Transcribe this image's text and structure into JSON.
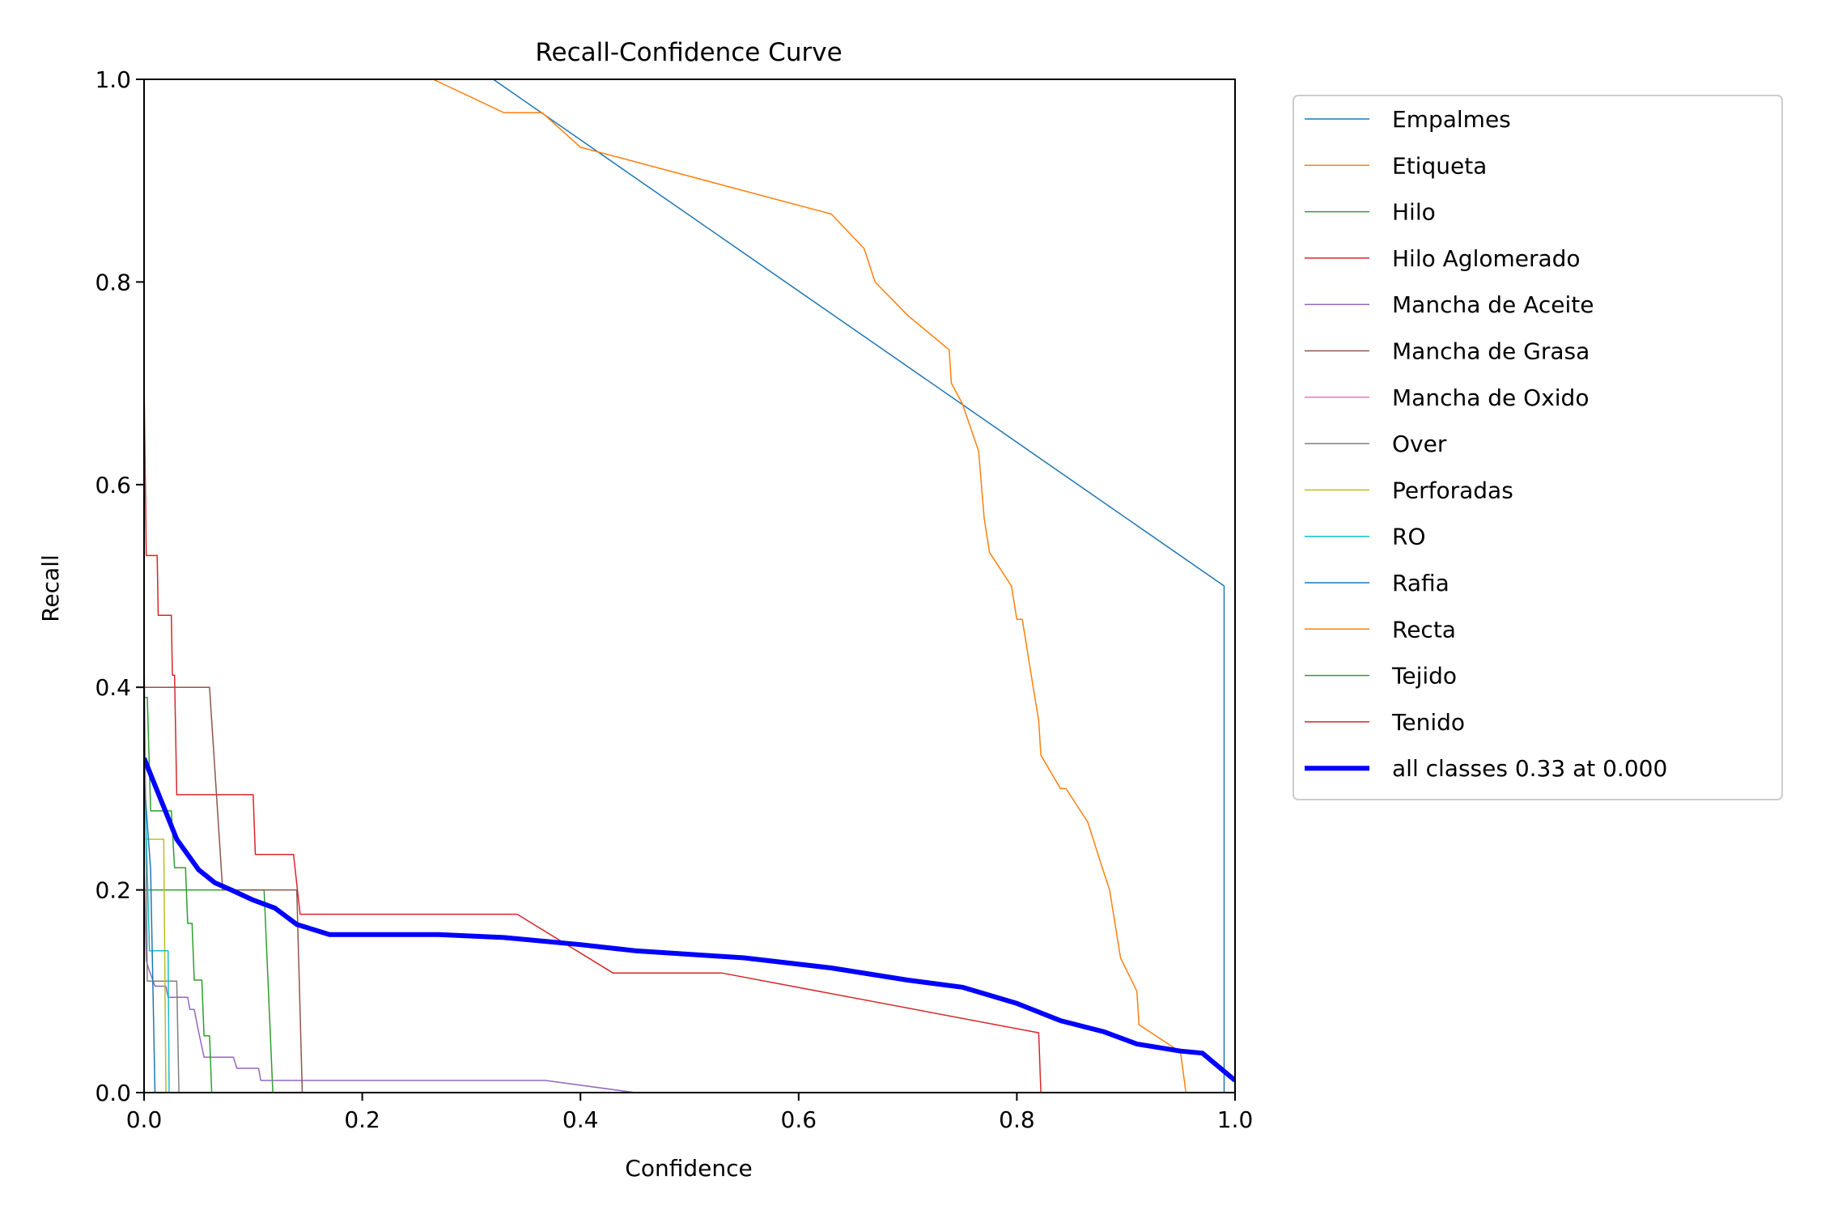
{
  "chart_data": {
    "type": "line",
    "title": "Recall-Confidence Curve",
    "xlabel": "Confidence",
    "ylabel": "Recall",
    "xlim": [
      0,
      1
    ],
    "ylim": [
      0,
      1
    ],
    "xticks": [
      "0.0",
      "0.2",
      "0.4",
      "0.6",
      "0.8",
      "1.0"
    ],
    "yticks": [
      "0.0",
      "0.2",
      "0.4",
      "0.6",
      "0.8",
      "1.0"
    ],
    "grid": false,
    "legend_position": "outside-right",
    "series": [
      {
        "name": "Empalmes",
        "color": "#1f77b4",
        "width": 1.5,
        "points": [
          [
            0.32,
            1.0
          ],
          [
            0.99,
            0.5
          ],
          [
            0.99,
            0.0
          ],
          [
            1.0,
            0.0
          ]
        ]
      },
      {
        "name": "Etiqueta",
        "color": "#ff7f0e",
        "width": 1.5,
        "points": [
          [
            0.265,
            1.0
          ],
          [
            0.33,
            0.967
          ],
          [
            0.365,
            0.967
          ],
          [
            0.4,
            0.933
          ],
          [
            0.63,
            0.867
          ],
          [
            0.66,
            0.833
          ],
          [
            0.67,
            0.8
          ],
          [
            0.7,
            0.767
          ],
          [
            0.738,
            0.733
          ],
          [
            0.74,
            0.7
          ],
          [
            0.75,
            0.68
          ],
          [
            0.765,
            0.633
          ],
          [
            0.77,
            0.567
          ],
          [
            0.775,
            0.533
          ],
          [
            0.795,
            0.5
          ],
          [
            0.8,
            0.467
          ],
          [
            0.805,
            0.467
          ],
          [
            0.815,
            0.4
          ],
          [
            0.82,
            0.367
          ],
          [
            0.822,
            0.333
          ],
          [
            0.84,
            0.3
          ],
          [
            0.845,
            0.3
          ],
          [
            0.865,
            0.267
          ],
          [
            0.875,
            0.233
          ],
          [
            0.885,
            0.2
          ],
          [
            0.895,
            0.133
          ],
          [
            0.91,
            0.1
          ],
          [
            0.912,
            0.067
          ],
          [
            0.95,
            0.04
          ],
          [
            0.955,
            0.0
          ],
          [
            1.0,
            0.0
          ]
        ]
      },
      {
        "name": "Hilo",
        "color": "#2ca02c",
        "width": 1.5,
        "points": [
          [
            0.0,
            0.2
          ],
          [
            0.11,
            0.2
          ],
          [
            0.118,
            0.0
          ],
          [
            1.0,
            0.0
          ]
        ]
      },
      {
        "name": "Hilo Aglomerado",
        "color": "#d62728",
        "width": 1.5,
        "points": [
          [
            0.0,
            0.706
          ],
          [
            0.002,
            0.53
          ],
          [
            0.012,
            0.53
          ],
          [
            0.013,
            0.471
          ],
          [
            0.025,
            0.471
          ],
          [
            0.026,
            0.412
          ],
          [
            0.028,
            0.412
          ],
          [
            0.03,
            0.294
          ],
          [
            0.1,
            0.294
          ],
          [
            0.102,
            0.235
          ],
          [
            0.137,
            0.235
          ],
          [
            0.143,
            0.176
          ],
          [
            0.342,
            0.176
          ],
          [
            0.43,
            0.118
          ],
          [
            0.53,
            0.118
          ],
          [
            0.82,
            0.059
          ],
          [
            0.822,
            0.0
          ],
          [
            1.0,
            0.0
          ]
        ]
      },
      {
        "name": "Mancha de Aceite",
        "color": "#9467bd",
        "width": 1.5,
        "points": [
          [
            0.0,
            0.225
          ],
          [
            0.002,
            0.13
          ],
          [
            0.005,
            0.12
          ],
          [
            0.01,
            0.105
          ],
          [
            0.02,
            0.105
          ],
          [
            0.022,
            0.094
          ],
          [
            0.04,
            0.094
          ],
          [
            0.042,
            0.082
          ],
          [
            0.046,
            0.082
          ],
          [
            0.05,
            0.06
          ],
          [
            0.055,
            0.035
          ],
          [
            0.082,
            0.035
          ],
          [
            0.085,
            0.024
          ],
          [
            0.105,
            0.024
          ],
          [
            0.107,
            0.012
          ],
          [
            0.368,
            0.012
          ],
          [
            0.45,
            0.0
          ],
          [
            1.0,
            0.0
          ]
        ]
      },
      {
        "name": "Mancha de Grasa",
        "color": "#8c564b",
        "width": 1.5,
        "points": [
          [
            0.0,
            0.4
          ],
          [
            0.06,
            0.4
          ],
          [
            0.072,
            0.2
          ],
          [
            0.14,
            0.2
          ],
          [
            0.145,
            0.0
          ],
          [
            1.0,
            0.0
          ]
        ]
      },
      {
        "name": "Mancha de Oxido",
        "color": "#e377c2",
        "width": 1.5,
        "points": [
          [
            0.0,
            0.0
          ],
          [
            1.0,
            0.0
          ]
        ]
      },
      {
        "name": "Over",
        "color": "#7f7f7f",
        "width": 1.5,
        "points": [
          [
            0.0,
            0.44
          ],
          [
            0.003,
            0.11
          ],
          [
            0.03,
            0.11
          ],
          [
            0.032,
            0.0
          ],
          [
            1.0,
            0.0
          ]
        ]
      },
      {
        "name": "Perforadas",
        "color": "#bcbd22",
        "width": 1.5,
        "points": [
          [
            0.0,
            0.25
          ],
          [
            0.018,
            0.25
          ],
          [
            0.02,
            0.0
          ],
          [
            1.0,
            0.0
          ]
        ]
      },
      {
        "name": "RO",
        "color": "#17becf",
        "width": 1.5,
        "points": [
          [
            0.0,
            0.33
          ],
          [
            0.005,
            0.14
          ],
          [
            0.022,
            0.14
          ],
          [
            0.023,
            0.0
          ],
          [
            1.0,
            0.0
          ]
        ]
      },
      {
        "name": "Rafia",
        "color": "#1f77b4",
        "width": 1.5,
        "points": [
          [
            0.0,
            0.31
          ],
          [
            0.006,
            0.22
          ],
          [
            0.01,
            0.0
          ],
          [
            1.0,
            0.0
          ]
        ]
      },
      {
        "name": "Recta",
        "color": "#ff7f0e",
        "width": 1.5,
        "points": [
          [
            0.0,
            0.0
          ],
          [
            1.0,
            0.0
          ]
        ]
      },
      {
        "name": "Tejido",
        "color": "#2ca02c",
        "width": 1.5,
        "points": [
          [
            0.0,
            0.39
          ],
          [
            0.003,
            0.39
          ],
          [
            0.006,
            0.278
          ],
          [
            0.025,
            0.278
          ],
          [
            0.028,
            0.222
          ],
          [
            0.038,
            0.222
          ],
          [
            0.04,
            0.167
          ],
          [
            0.044,
            0.167
          ],
          [
            0.046,
            0.111
          ],
          [
            0.053,
            0.111
          ],
          [
            0.055,
            0.056
          ],
          [
            0.06,
            0.056
          ],
          [
            0.062,
            0.0
          ],
          [
            1.0,
            0.0
          ]
        ]
      },
      {
        "name": "Tenido",
        "color": "#d62728",
        "width": 1.5,
        "points": [
          [
            0.0,
            0.0
          ],
          [
            1.0,
            0.0
          ]
        ]
      },
      {
        "name": "all classes 0.33 at 0.000",
        "color": "#0000ff",
        "width": 6,
        "points": [
          [
            0.0,
            0.33
          ],
          [
            0.015,
            0.29
          ],
          [
            0.03,
            0.25
          ],
          [
            0.05,
            0.22
          ],
          [
            0.065,
            0.207
          ],
          [
            0.08,
            0.2
          ],
          [
            0.1,
            0.19
          ],
          [
            0.12,
            0.182
          ],
          [
            0.14,
            0.166
          ],
          [
            0.17,
            0.156
          ],
          [
            0.27,
            0.156
          ],
          [
            0.33,
            0.153
          ],
          [
            0.4,
            0.146
          ],
          [
            0.45,
            0.14
          ],
          [
            0.55,
            0.133
          ],
          [
            0.63,
            0.123
          ],
          [
            0.7,
            0.111
          ],
          [
            0.75,
            0.104
          ],
          [
            0.8,
            0.088
          ],
          [
            0.84,
            0.071
          ],
          [
            0.88,
            0.06
          ],
          [
            0.91,
            0.048
          ],
          [
            0.95,
            0.041
          ],
          [
            0.97,
            0.039
          ],
          [
            1.0,
            0.012
          ]
        ]
      }
    ]
  }
}
